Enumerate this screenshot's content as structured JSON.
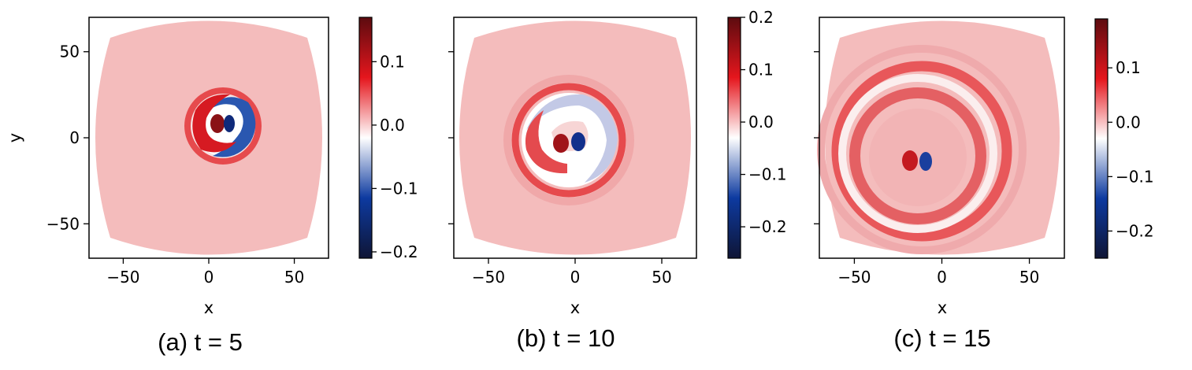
{
  "colormap": {
    "name": "seismic",
    "stops": [
      "#0f1535",
      "#0d3aa0",
      "#ffffff",
      "#e5161d",
      "#5c0b0f"
    ]
  },
  "chart_data": [
    {
      "type": "heatmap",
      "caption": "(a) t = 5",
      "xlabel": "x",
      "ylabel": "y",
      "xlim": [
        -70,
        70
      ],
      "ylim": [
        -70,
        70
      ],
      "xticks": [
        -50,
        0,
        50
      ],
      "yticks": [
        -50,
        0,
        50
      ],
      "xtick_labels": [
        "−50",
        "0",
        "50"
      ],
      "ytick_labels": [
        "−50",
        "0",
        "50"
      ],
      "colorbar": {
        "min": -0.21,
        "max": 0.17,
        "ticks": [
          0.1,
          0.0,
          -0.1,
          -0.2
        ],
        "tick_labels": [
          "0.1",
          "0.0",
          "−0.1",
          "−0.2"
        ]
      },
      "background_value": 0.03,
      "vortex_pair": {
        "positive_center": [
          5,
          9
        ],
        "negative_center": [
          12,
          9
        ],
        "peak": 0.17,
        "trough": -0.21
      },
      "spiral": {
        "center": [
          8,
          8
        ],
        "outer_radius": 30
      }
    },
    {
      "type": "heatmap",
      "caption": "(b) t = 10",
      "xlabel": "x",
      "ylabel": "",
      "xlim": [
        -70,
        70
      ],
      "ylim": [
        -70,
        70
      ],
      "xticks": [
        -50,
        0,
        50
      ],
      "yticks": [
        -50,
        0,
        50
      ],
      "xtick_labels": [
        "−50",
        "0",
        "50"
      ],
      "ytick_labels": [],
      "colorbar": {
        "min": -0.26,
        "max": 0.2,
        "ticks": [
          0.2,
          0.1,
          0.0,
          -0.1,
          -0.2
        ],
        "tick_labels": [
          "0.2",
          "0.1",
          "0.0",
          "−0.1",
          "−0.2"
        ]
      },
      "background_value": 0.03,
      "vortex_pair": {
        "positive_center": [
          -8,
          -2
        ],
        "negative_center": [
          2,
          -2
        ],
        "peak": 0.2,
        "trough": -0.26
      },
      "spiral": {
        "center": [
          -2,
          0
        ],
        "outer_radius": 45
      }
    },
    {
      "type": "heatmap",
      "caption": "(c) t = 15",
      "xlabel": "x",
      "ylabel": "",
      "xlim": [
        -70,
        70
      ],
      "ylim": [
        -70,
        70
      ],
      "xticks": [
        -50,
        0,
        50
      ],
      "yticks": [
        -50,
        0,
        50
      ],
      "xtick_labels": [
        "−50",
        "0",
        "50"
      ],
      "ytick_labels": [],
      "colorbar": {
        "min": -0.25,
        "max": 0.19,
        "ticks": [
          0.1,
          0.0,
          -0.1,
          -0.2
        ],
        "tick_labels": [
          "0.1",
          "0.0",
          "−0.1",
          "−0.2"
        ]
      },
      "background_value": 0.03,
      "vortex_pair": {
        "positive_center": [
          -18,
          -13
        ],
        "negative_center": [
          -9,
          -13
        ],
        "peak": 0.19,
        "trough": -0.25
      },
      "spiral": {
        "center": [
          -12,
          -8
        ],
        "outer_radius": 62
      }
    }
  ]
}
